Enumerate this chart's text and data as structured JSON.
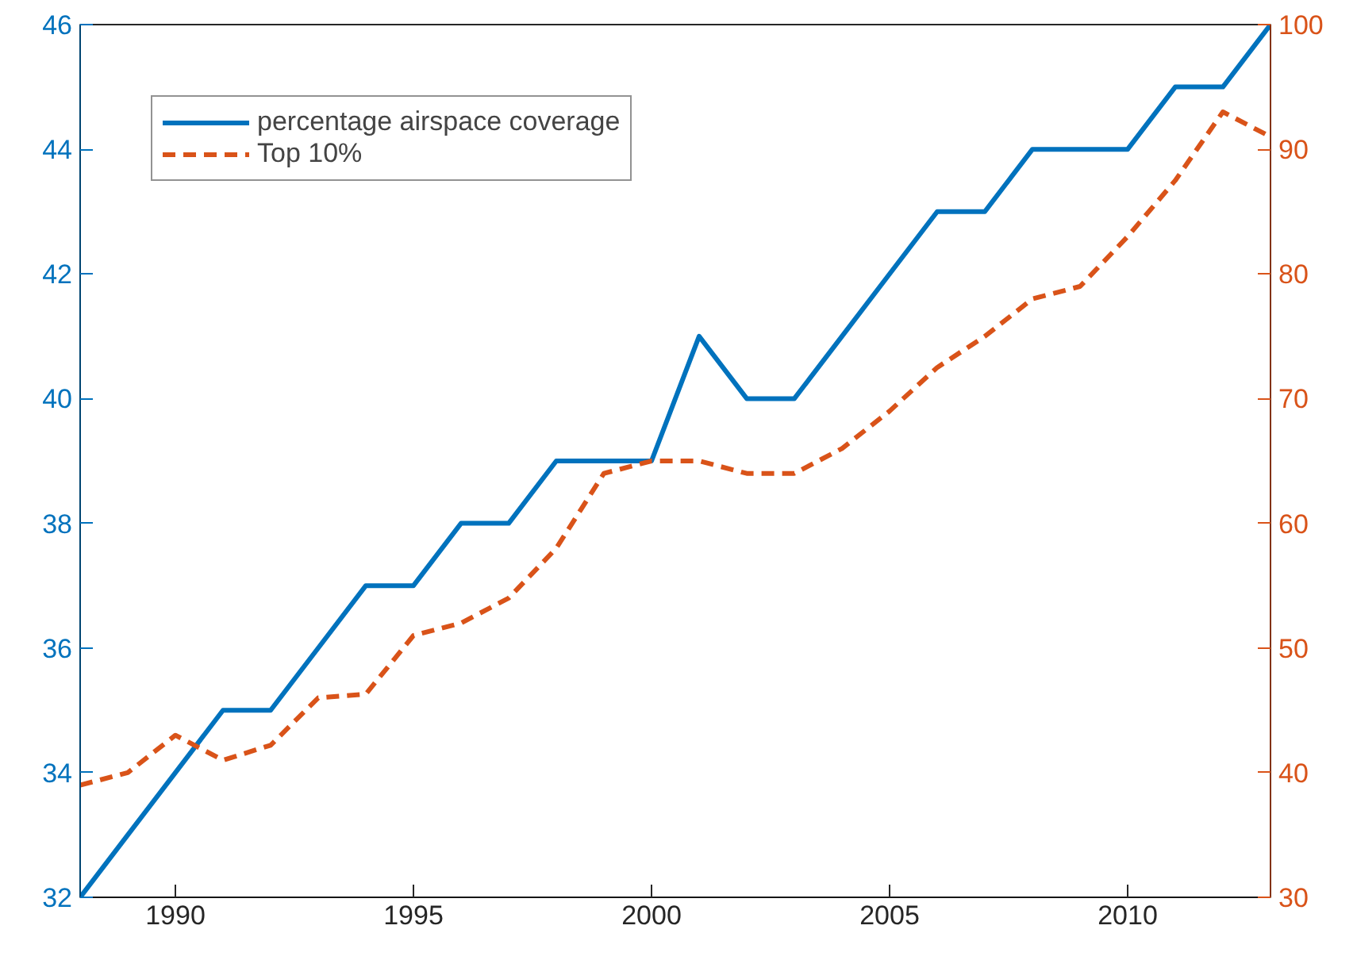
{
  "chart_data": {
    "type": "line",
    "x": [
      1988,
      1989,
      1990,
      1991,
      1992,
      1993,
      1994,
      1995,
      1996,
      1997,
      1998,
      1999,
      2000,
      2001,
      2002,
      2003,
      2004,
      2005,
      2006,
      2007,
      2008,
      2009,
      2010,
      2011,
      2012,
      2013
    ],
    "series": [
      {
        "name": "percentage airspace coverage",
        "color": "#0072bd",
        "line_style": "solid",
        "values": [
          32,
          33,
          34,
          35,
          35,
          36,
          37,
          37,
          38,
          38,
          39,
          39,
          39,
          41,
          40,
          40,
          41,
          42,
          43,
          43,
          44,
          44,
          44,
          45,
          45,
          46
        ]
      },
      {
        "name": "Top 10%",
        "color": "#d95319",
        "line_style": "dashed",
        "axis": "y2",
        "values": [
          39,
          40,
          43,
          41,
          42.2,
          46,
          46.3,
          51,
          52,
          54,
          58,
          64,
          65,
          65,
          64,
          64,
          66,
          69,
          72.5,
          75,
          78,
          79,
          83,
          87.5,
          93,
          91
        ]
      }
    ],
    "xlim": [
      1988,
      2013
    ],
    "xticks": [
      1990,
      1995,
      2000,
      2005,
      2010
    ],
    "ylim": [
      32,
      46
    ],
    "yticks": [
      32,
      34,
      36,
      38,
      40,
      42,
      44,
      46
    ],
    "y2lim": [
      30,
      100
    ],
    "y2ticks": [
      30,
      40,
      50,
      60,
      70,
      80,
      90,
      100
    ],
    "legend": "top left",
    "grid": false
  }
}
